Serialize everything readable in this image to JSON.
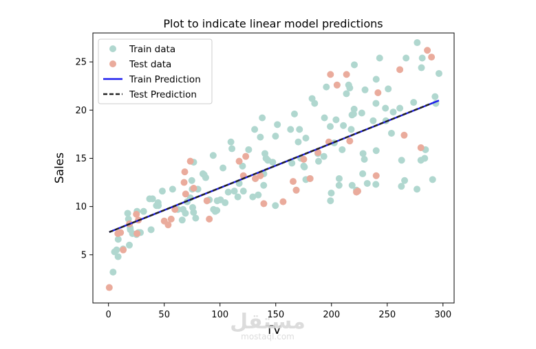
{
  "chart_data": {
    "type": "scatter",
    "title": "Plot to indicate linear model predictions",
    "xlabel": "TV",
    "ylabel": "Sales",
    "xlim": [
      -14,
      310
    ],
    "ylim": [
      0,
      28
    ],
    "xticks": [
      0,
      50,
      100,
      150,
      200,
      250,
      300
    ],
    "yticks": [
      5,
      10,
      15,
      20,
      25
    ],
    "grid": false,
    "legend_position": "top-left",
    "series": [
      {
        "name": "Train data",
        "kind": "scatter",
        "color": "#b0d7cf",
        "points": [
          [
            4.1,
            3.2
          ],
          [
            5.4,
            5.3
          ],
          [
            7.3,
            5.5
          ],
          [
            8.6,
            4.8
          ],
          [
            8.7,
            6.6
          ],
          [
            13.1,
            5.6
          ],
          [
            17.2,
            9.3
          ],
          [
            17.9,
            8.7
          ],
          [
            18.7,
            6.0
          ],
          [
            19.4,
            7.8
          ],
          [
            19.6,
            7.6
          ],
          [
            21.5,
            7.2
          ],
          [
            25.1,
            7.1
          ],
          [
            25.6,
            9.5
          ],
          [
            26.8,
            7.3
          ],
          [
            28.6,
            7.3
          ],
          [
            31.5,
            9.5
          ],
          [
            36.9,
            10.8
          ],
          [
            38.2,
            7.6
          ],
          [
            39.5,
            10.8
          ],
          [
            43.0,
            10.1
          ],
          [
            44.5,
            10.4
          ],
          [
            44.7,
            10.1
          ],
          [
            48.3,
            11.6
          ],
          [
            57.5,
            11.8
          ],
          [
            62.3,
            9.7
          ],
          [
            66.1,
            8.6
          ],
          [
            66.9,
            9.7
          ],
          [
            69.0,
            9.3
          ],
          [
            70.6,
            10.5
          ],
          [
            73.4,
            10.9
          ],
          [
            74.7,
            12.7
          ],
          [
            75.1,
            11.8
          ],
          [
            75.5,
            9.9
          ],
          [
            76.3,
            9.4
          ],
          [
            76.4,
            14.6
          ],
          [
            78.2,
            8.8
          ],
          [
            80.2,
            11.8
          ],
          [
            84.7,
            13.4
          ],
          [
            85.7,
            13.3
          ],
          [
            87.2,
            13.0
          ],
          [
            88.3,
            10.6
          ],
          [
            90.4,
            10.7
          ],
          [
            93.9,
            15.3
          ],
          [
            94.2,
            9.7
          ],
          [
            95.7,
            9.5
          ],
          [
            97.2,
            9.6
          ],
          [
            97.5,
            10.6
          ],
          [
            100.4,
            10.7
          ],
          [
            102.7,
            14.0
          ],
          [
            104.6,
            10.4
          ],
          [
            107.4,
            11.5
          ],
          [
            109.8,
            16.7
          ],
          [
            110.7,
            16.0
          ],
          [
            112.9,
            11.6
          ],
          [
            116.0,
            11.0
          ],
          [
            117.2,
            12.4
          ],
          [
            120.2,
            14.2
          ],
          [
            121.0,
            11.6
          ],
          [
            125.7,
            15.9
          ],
          [
            129.4,
            11.0
          ],
          [
            131.1,
            18.0
          ],
          [
            131.7,
            12.9
          ],
          [
            134.3,
            11.2
          ],
          [
            136.2,
            17.2
          ],
          [
            137.9,
            19.2
          ],
          [
            139.2,
            12.2
          ],
          [
            139.3,
            13.4
          ],
          [
            140.3,
            15.5
          ],
          [
            141.3,
            15.0
          ],
          [
            142.9,
            14.8
          ],
          [
            147.3,
            14.6
          ],
          [
            149.7,
            10.1
          ],
          [
            149.8,
            17.3
          ],
          [
            151.5,
            18.5
          ],
          [
            163.3,
            18.0
          ],
          [
            164.5,
            14.5
          ],
          [
            166.8,
            19.6
          ],
          [
            168.4,
            11.7
          ],
          [
            170.2,
            16.7
          ],
          [
            171.3,
            18.0
          ],
          [
            172.5,
            15.0
          ],
          [
            175.1,
            14.2
          ],
          [
            175.7,
            14.1
          ],
          [
            177.0,
            17.1
          ],
          [
            177.0,
            12.8
          ],
          [
            180.8,
            12.9
          ],
          [
            182.6,
            21.2
          ],
          [
            184.9,
            20.7
          ],
          [
            187.8,
            15.5
          ],
          [
            188.4,
            14.7
          ],
          [
            193.2,
            15.2
          ],
          [
            193.7,
            19.2
          ],
          [
            195.4,
            22.4
          ],
          [
            198.9,
            18.3
          ],
          [
            199.1,
            10.6
          ],
          [
            199.8,
            11.4
          ],
          [
            202.5,
            16.6
          ],
          [
            204.1,
            19.0
          ],
          [
            205.0,
            22.6
          ],
          [
            206.8,
            12.2
          ],
          [
            206.9,
            12.9
          ],
          [
            209.6,
            15.9
          ],
          [
            210.7,
            18.4
          ],
          [
            213.4,
            21.7
          ],
          [
            215.4,
            22.6
          ],
          [
            216.4,
            22.3
          ],
          [
            217.7,
            18.0
          ],
          [
            218.4,
            19.5
          ],
          [
            218.5,
            12.2
          ],
          [
            219.8,
            19.6
          ],
          [
            220.5,
            24.7
          ],
          [
            220.3,
            20.1
          ],
          [
            222.4,
            11.7
          ],
          [
            227.2,
            19.7
          ],
          [
            228.0,
            13.4
          ],
          [
            228.3,
            15.5
          ],
          [
            229.5,
            14.9
          ],
          [
            230.1,
            22.1
          ],
          [
            232.1,
            12.4
          ],
          [
            237.4,
            18.9
          ],
          [
            239.8,
            12.3
          ],
          [
            239.9,
            20.7
          ],
          [
            240.1,
            15.8
          ],
          [
            240.1,
            23.2
          ],
          [
            243.2,
            25.4
          ],
          [
            248.4,
            20.2
          ],
          [
            248.8,
            18.9
          ],
          [
            250.9,
            22.2
          ],
          [
            253.8,
            17.6
          ],
          [
            255.4,
            19.8
          ],
          [
            261.3,
            20.2
          ],
          [
            262.7,
            12.1
          ],
          [
            262.9,
            14.8
          ],
          [
            265.6,
            12.7
          ],
          [
            266.9,
            25.4
          ],
          [
            273.7,
            20.8
          ],
          [
            276.7,
            11.8
          ],
          [
            276.9,
            27.0
          ],
          [
            280.2,
            14.8
          ],
          [
            280.7,
            24.4
          ],
          [
            281.4,
            25.4
          ],
          [
            283.6,
            15.0
          ],
          [
            284.3,
            15.9
          ],
          [
            290.7,
            12.8
          ],
          [
            292.9,
            21.4
          ],
          [
            293.6,
            20.7
          ],
          [
            296.4,
            23.8
          ]
        ]
      },
      {
        "name": "Test data",
        "kind": "scatter",
        "color": "#eaab9c",
        "points": [
          [
            0.7,
            1.6
          ],
          [
            8.4,
            7.2
          ],
          [
            10.8,
            7.3
          ],
          [
            13.2,
            5.5
          ],
          [
            18.8,
            8.2
          ],
          [
            25.0,
            9.2
          ],
          [
            25.6,
            7.2
          ],
          [
            26.8,
            8.6
          ],
          [
            50.0,
            8.5
          ],
          [
            53.5,
            8.1
          ],
          [
            56.2,
            8.7
          ],
          [
            59.6,
            9.7
          ],
          [
            67.8,
            12.5
          ],
          [
            68.4,
            13.6
          ],
          [
            69.2,
            11.3
          ],
          [
            73.4,
            14.7
          ],
          [
            76.4,
            11.9
          ],
          [
            88.3,
            10.6
          ],
          [
            90.4,
            8.7
          ],
          [
            117.2,
            14.7
          ],
          [
            121.0,
            13.2
          ],
          [
            123.1,
            15.2
          ],
          [
            131.7,
            12.9
          ],
          [
            136.2,
            13.2
          ],
          [
            139.3,
            10.3
          ],
          [
            156.6,
            10.5
          ],
          [
            165.6,
            12.6
          ],
          [
            168.4,
            11.7
          ],
          [
            175.1,
            14.9
          ],
          [
            180.8,
            12.9
          ],
          [
            187.9,
            15.6
          ],
          [
            197.6,
            16.7
          ],
          [
            199.1,
            23.7
          ],
          [
            205.0,
            22.6
          ],
          [
            213.5,
            23.7
          ],
          [
            216.4,
            16.8
          ],
          [
            222.4,
            11.5
          ],
          [
            223.6,
            11.6
          ],
          [
            240.1,
            13.2
          ],
          [
            241.7,
            21.8
          ],
          [
            261.3,
            24.2
          ],
          [
            265.2,
            17.4
          ],
          [
            280.2,
            16.1
          ],
          [
            286.0,
            26.2
          ],
          [
            289.7,
            25.5
          ]
        ]
      },
      {
        "name": "Train Prediction",
        "kind": "line",
        "color": "#1a1aee",
        "points": [
          [
            0.7,
            7.35
          ],
          [
            296.4,
            21.0
          ]
        ]
      },
      {
        "name": "Test Prediction",
        "kind": "line",
        "style": "dashed",
        "color": "#222222",
        "points": [
          [
            0.7,
            7.35
          ],
          [
            289.7,
            20.7
          ]
        ]
      }
    ]
  },
  "watermark": {
    "main": "مستقل",
    "sub": "mostaql.com"
  }
}
